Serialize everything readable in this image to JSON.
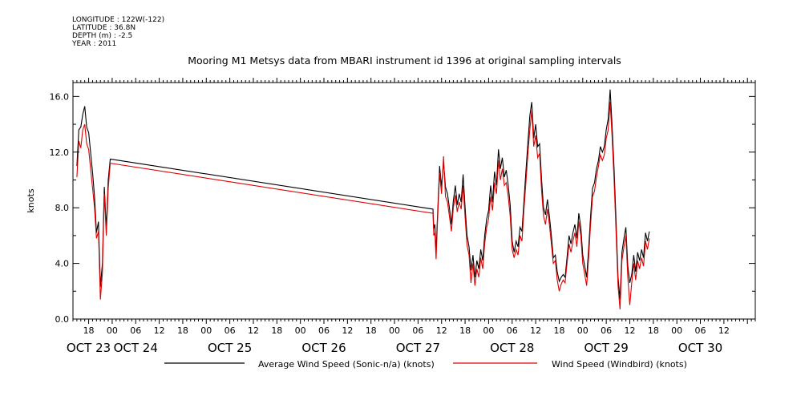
{
  "header": {
    "longitude": "LONGITUDE : 122W(-122)",
    "latitude": "LATITUDE : 36.8N",
    "depth": "DEPTH (m) : -2.5",
    "year": "YEAR : 2011"
  },
  "chart_data": {
    "type": "line",
    "title": "Mooring M1 Metsys data from MBARI instrument id 1396 at original sampling intervals",
    "ylabel": "knots",
    "xlabel": "",
    "ylim": [
      0,
      17
    ],
    "xlim": [
      -10,
      164
    ],
    "yticks": [
      0,
      4,
      8,
      12,
      16
    ],
    "y_tick_labels": [
      "0.0",
      "4.0",
      "8.0",
      "12.0",
      "16.0"
    ],
    "hour_ticks": [
      {
        "t": -6,
        "label": "18"
      },
      {
        "t": 0,
        "label": "00"
      },
      {
        "t": 6,
        "label": "06"
      },
      {
        "t": 12,
        "label": "12"
      },
      {
        "t": 18,
        "label": "18"
      },
      {
        "t": 24,
        "label": "00"
      },
      {
        "t": 30,
        "label": "06"
      },
      {
        "t": 36,
        "label": "12"
      },
      {
        "t": 42,
        "label": "18"
      },
      {
        "t": 48,
        "label": "00"
      },
      {
        "t": 54,
        "label": "06"
      },
      {
        "t": 60,
        "label": "12"
      },
      {
        "t": 66,
        "label": "18"
      },
      {
        "t": 72,
        "label": "00"
      },
      {
        "t": 78,
        "label": "06"
      },
      {
        "t": 84,
        "label": "12"
      },
      {
        "t": 90,
        "label": "18"
      },
      {
        "t": 96,
        "label": "00"
      },
      {
        "t": 102,
        "label": "06"
      },
      {
        "t": 108,
        "label": "12"
      },
      {
        "t": 114,
        "label": "18"
      },
      {
        "t": 120,
        "label": "00"
      },
      {
        "t": 126,
        "label": "06"
      },
      {
        "t": 132,
        "label": "12"
      },
      {
        "t": 138,
        "label": "18"
      },
      {
        "t": 144,
        "label": "00"
      },
      {
        "t": 150,
        "label": "06"
      },
      {
        "t": 156,
        "label": "12"
      }
    ],
    "day_labels": [
      {
        "t": -6,
        "label": "OCT 23"
      },
      {
        "t": 6,
        "label": "OCT 24"
      },
      {
        "t": 30,
        "label": "OCT 25"
      },
      {
        "t": 54,
        "label": "OCT 26"
      },
      {
        "t": 78,
        "label": "OCT 27"
      },
      {
        "t": 102,
        "label": "OCT 28"
      },
      {
        "t": 126,
        "label": "OCT 29"
      },
      {
        "t": 150,
        "label": "OCT 30"
      }
    ],
    "series": [
      {
        "name": "Average Wind Speed (Sonic-n/a) (knots)",
        "color": "#000000",
        "points": [
          [
            -9,
            11.0
          ],
          [
            -8.5,
            13.6
          ],
          [
            -8,
            13.8
          ],
          [
            -7.5,
            14.7
          ],
          [
            -7,
            15.3
          ],
          [
            -6.5,
            13.8
          ],
          [
            -6,
            13.4
          ],
          [
            -5.5,
            12.0
          ],
          [
            -5,
            10.5
          ],
          [
            -4.5,
            8.8
          ],
          [
            -4,
            6.2
          ],
          [
            -3.5,
            7.0
          ],
          [
            -3,
            2.3
          ],
          [
            -2.5,
            4.0
          ],
          [
            -2,
            9.5
          ],
          [
            -1.5,
            6.5
          ],
          [
            -1,
            10.0
          ],
          [
            -0.5,
            11.5
          ],
          [
            81.8,
            7.9
          ],
          [
            82.0,
            6.5
          ],
          [
            82.3,
            6.8
          ],
          [
            82.6,
            4.8
          ],
          [
            83,
            7.6
          ],
          [
            83.5,
            11.0
          ],
          [
            84,
            9.5
          ],
          [
            84.5,
            11.3
          ],
          [
            85,
            9.5
          ],
          [
            85.5,
            9.0
          ],
          [
            86,
            8.0
          ],
          [
            86.5,
            6.8
          ],
          [
            87,
            8.5
          ],
          [
            87.5,
            9.6
          ],
          [
            88,
            8.2
          ],
          [
            88.5,
            9.0
          ],
          [
            89,
            8.4
          ],
          [
            89.5,
            10.4
          ],
          [
            90,
            8.0
          ],
          [
            90.5,
            6.0
          ],
          [
            91,
            5.2
          ],
          [
            91.5,
            3.5
          ],
          [
            92,
            4.6
          ],
          [
            92.5,
            3.0
          ],
          [
            93,
            4.2
          ],
          [
            93.5,
            3.6
          ],
          [
            94,
            5.0
          ],
          [
            94.5,
            4.2
          ],
          [
            95,
            6.0
          ],
          [
            95.5,
            7.2
          ],
          [
            96,
            7.8
          ],
          [
            96.5,
            9.6
          ],
          [
            97,
            8.4
          ],
          [
            97.5,
            10.6
          ],
          [
            98,
            9.6
          ],
          [
            98.5,
            12.2
          ],
          [
            99,
            10.8
          ],
          [
            99.5,
            11.6
          ],
          [
            100,
            10.2
          ],
          [
            100.5,
            10.7
          ],
          [
            101,
            9.6
          ],
          [
            101.5,
            8.2
          ],
          [
            102,
            5.6
          ],
          [
            102.5,
            4.8
          ],
          [
            103,
            5.6
          ],
          [
            103.5,
            5.2
          ],
          [
            104,
            6.6
          ],
          [
            104.5,
            6.3
          ],
          [
            105,
            8.4
          ],
          [
            105.5,
            10.6
          ],
          [
            106,
            12.6
          ],
          [
            106.5,
            14.6
          ],
          [
            107,
            15.6
          ],
          [
            107.5,
            13.0
          ],
          [
            108,
            14.0
          ],
          [
            108.5,
            12.4
          ],
          [
            109,
            12.6
          ],
          [
            109.5,
            10.0
          ],
          [
            110,
            8.0
          ],
          [
            110.5,
            7.5
          ],
          [
            111,
            8.6
          ],
          [
            111.5,
            7.4
          ],
          [
            112,
            6.0
          ],
          [
            112.5,
            4.4
          ],
          [
            113,
            4.6
          ],
          [
            113.5,
            3.4
          ],
          [
            114,
            2.7
          ],
          [
            114.5,
            3.0
          ],
          [
            115,
            3.2
          ],
          [
            115.5,
            3.0
          ],
          [
            116,
            4.4
          ],
          [
            116.5,
            6.0
          ],
          [
            117,
            5.4
          ],
          [
            117.5,
            6.2
          ],
          [
            118,
            6.8
          ],
          [
            118.5,
            5.8
          ],
          [
            119,
            7.6
          ],
          [
            119.5,
            6.6
          ],
          [
            120,
            4.6
          ],
          [
            120.5,
            3.8
          ],
          [
            121,
            3.0
          ],
          [
            121.5,
            5.0
          ],
          [
            122,
            7.4
          ],
          [
            122.5,
            9.4
          ],
          [
            123,
            9.8
          ],
          [
            123.5,
            10.8
          ],
          [
            124,
            11.4
          ],
          [
            124.5,
            12.4
          ],
          [
            125,
            12.0
          ],
          [
            125.5,
            12.4
          ],
          [
            126,
            13.6
          ],
          [
            126.5,
            14.4
          ],
          [
            127,
            16.5
          ],
          [
            127.5,
            13.8
          ],
          [
            128,
            10.8
          ],
          [
            128.5,
            7.0
          ],
          [
            129,
            3.0
          ],
          [
            129.5,
            1.4
          ],
          [
            130,
            4.8
          ],
          [
            130.5,
            5.8
          ],
          [
            131,
            6.6
          ],
          [
            131.5,
            3.8
          ],
          [
            132,
            2.6
          ],
          [
            132.5,
            3.2
          ],
          [
            133,
            4.6
          ],
          [
            133.5,
            3.4
          ],
          [
            134,
            4.8
          ],
          [
            134.5,
            4.2
          ],
          [
            135,
            5.0
          ],
          [
            135.5,
            4.4
          ],
          [
            136,
            6.2
          ],
          [
            136.5,
            5.6
          ],
          [
            137,
            6.3
          ]
        ]
      },
      {
        "name": "Wind Speed (Windbird) (knots)",
        "color": "#e00000",
        "points": [
          [
            -9,
            10.2
          ],
          [
            -8.5,
            12.8
          ],
          [
            -8,
            12.3
          ],
          [
            -7.5,
            13.6
          ],
          [
            -7,
            14.0
          ],
          [
            -6.5,
            12.6
          ],
          [
            -6,
            12.2
          ],
          [
            -5.5,
            10.8
          ],
          [
            -5,
            9.4
          ],
          [
            -4.5,
            8.0
          ],
          [
            -4,
            5.8
          ],
          [
            -3.5,
            6.3
          ],
          [
            -3,
            1.4
          ],
          [
            -2.5,
            3.3
          ],
          [
            -2,
            9.0
          ],
          [
            -1.5,
            6.0
          ],
          [
            -1,
            9.4
          ],
          [
            -0.5,
            11.2
          ],
          [
            81.8,
            7.6
          ],
          [
            82.0,
            6.0
          ],
          [
            82.3,
            6.2
          ],
          [
            82.6,
            4.3
          ],
          [
            83,
            7.2
          ],
          [
            83.5,
            10.5
          ],
          [
            84,
            9.0
          ],
          [
            84.5,
            11.7
          ],
          [
            85,
            8.8
          ],
          [
            85.5,
            8.4
          ],
          [
            86,
            7.4
          ],
          [
            86.5,
            6.3
          ],
          [
            87,
            8.0
          ],
          [
            87.5,
            8.9
          ],
          [
            88,
            7.7
          ],
          [
            88.5,
            8.4
          ],
          [
            89,
            7.9
          ],
          [
            89.5,
            9.6
          ],
          [
            90,
            7.3
          ],
          [
            90.5,
            5.3
          ],
          [
            91,
            4.6
          ],
          [
            91.5,
            2.6
          ],
          [
            92,
            4.0
          ],
          [
            92.5,
            2.4
          ],
          [
            93,
            3.6
          ],
          [
            93.5,
            3.0
          ],
          [
            94,
            4.4
          ],
          [
            94.5,
            3.6
          ],
          [
            95,
            5.4
          ],
          [
            95.5,
            6.6
          ],
          [
            96,
            7.2
          ],
          [
            96.5,
            8.8
          ],
          [
            97,
            7.8
          ],
          [
            97.5,
            9.8
          ],
          [
            98,
            9.0
          ],
          [
            98.5,
            11.4
          ],
          [
            99,
            10.0
          ],
          [
            99.5,
            10.8
          ],
          [
            100,
            9.6
          ],
          [
            100.5,
            9.8
          ],
          [
            101,
            8.8
          ],
          [
            101.5,
            7.4
          ],
          [
            102,
            5.0
          ],
          [
            102.5,
            4.4
          ],
          [
            103,
            5.0
          ],
          [
            103.5,
            4.6
          ],
          [
            104,
            6.0
          ],
          [
            104.5,
            5.6
          ],
          [
            105,
            7.8
          ],
          [
            105.5,
            9.8
          ],
          [
            106,
            11.8
          ],
          [
            106.5,
            13.6
          ],
          [
            107,
            15.0
          ],
          [
            107.5,
            12.4
          ],
          [
            108,
            13.2
          ],
          [
            108.5,
            11.6
          ],
          [
            109,
            11.9
          ],
          [
            109.5,
            9.2
          ],
          [
            110,
            7.4
          ],
          [
            110.5,
            6.8
          ],
          [
            111,
            7.9
          ],
          [
            111.5,
            6.8
          ],
          [
            112,
            5.4
          ],
          [
            112.5,
            4.0
          ],
          [
            113,
            4.2
          ],
          [
            113.5,
            2.8
          ],
          [
            114,
            2.0
          ],
          [
            114.5,
            2.5
          ],
          [
            115,
            2.8
          ],
          [
            115.5,
            2.6
          ],
          [
            116,
            4.0
          ],
          [
            116.5,
            5.4
          ],
          [
            117,
            4.8
          ],
          [
            117.5,
            5.6
          ],
          [
            118,
            6.2
          ],
          [
            118.5,
            5.2
          ],
          [
            119,
            7.0
          ],
          [
            119.5,
            6.0
          ],
          [
            120,
            4.0
          ],
          [
            120.5,
            3.2
          ],
          [
            121,
            2.4
          ],
          [
            121.5,
            4.4
          ],
          [
            122,
            6.8
          ],
          [
            122.5,
            8.8
          ],
          [
            123,
            9.2
          ],
          [
            123.5,
            10.2
          ],
          [
            124,
            11.0
          ],
          [
            124.5,
            11.8
          ],
          [
            125,
            11.4
          ],
          [
            125.5,
            11.8
          ],
          [
            126,
            13.0
          ],
          [
            126.5,
            13.6
          ],
          [
            127,
            15.6
          ],
          [
            127.5,
            13.0
          ],
          [
            128,
            10.0
          ],
          [
            128.5,
            6.2
          ],
          [
            129,
            2.4
          ],
          [
            129.5,
            0.7
          ],
          [
            130,
            4.2
          ],
          [
            130.5,
            5.2
          ],
          [
            131,
            6.0
          ],
          [
            131.5,
            3.0
          ],
          [
            132,
            1.0
          ],
          [
            132.5,
            2.6
          ],
          [
            133,
            4.0
          ],
          [
            133.5,
            2.8
          ],
          [
            134,
            4.2
          ],
          [
            134.5,
            3.6
          ],
          [
            135,
            4.4
          ],
          [
            135.5,
            3.8
          ],
          [
            136,
            5.6
          ],
          [
            136.5,
            5.0
          ],
          [
            137,
            5.8
          ]
        ]
      }
    ],
    "legend_position": "bottom"
  }
}
